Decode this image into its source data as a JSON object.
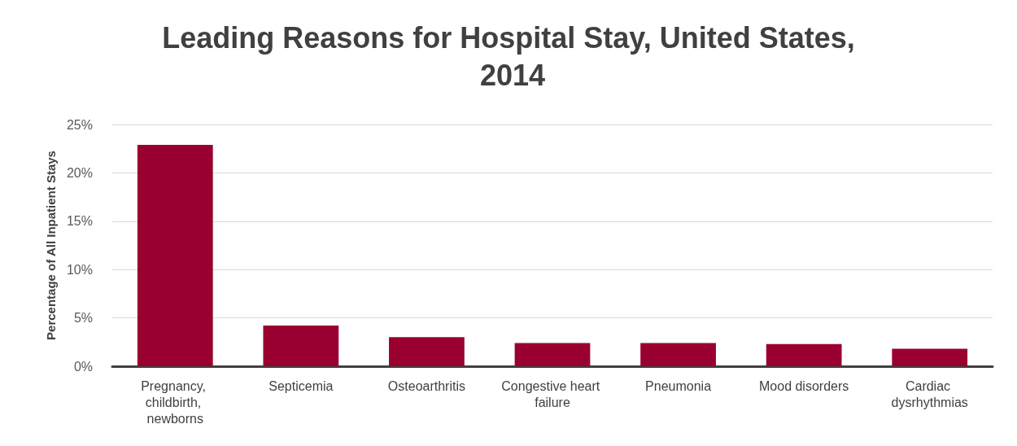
{
  "chart_data": {
    "type": "bar",
    "title": "Leading Reasons for Hospital Stay, United States, 2014",
    "ylabel": "Percentage of All Inpatient Stays",
    "categories": [
      "Pregnancy, childbirth, newborns",
      "Septicemia",
      "Osteoarthritis",
      "Congestive heart failure",
      "Pneumonia",
      "Mood disorders",
      "Cardiac dysrhythmias"
    ],
    "values": [
      22.9,
      4.2,
      3.0,
      2.4,
      2.4,
      2.3,
      1.8
    ],
    "color": "#990030",
    "ylim": [
      0,
      25
    ],
    "yticks": [
      {
        "value": 0,
        "label": "0%"
      },
      {
        "value": 5,
        "label": "5%"
      },
      {
        "value": 10,
        "label": "10%"
      },
      {
        "value": 15,
        "label": "15%"
      },
      {
        "value": 20,
        "label": "20%"
      },
      {
        "value": 25,
        "label": "25%"
      }
    ],
    "grid": "y",
    "legend": false
  }
}
